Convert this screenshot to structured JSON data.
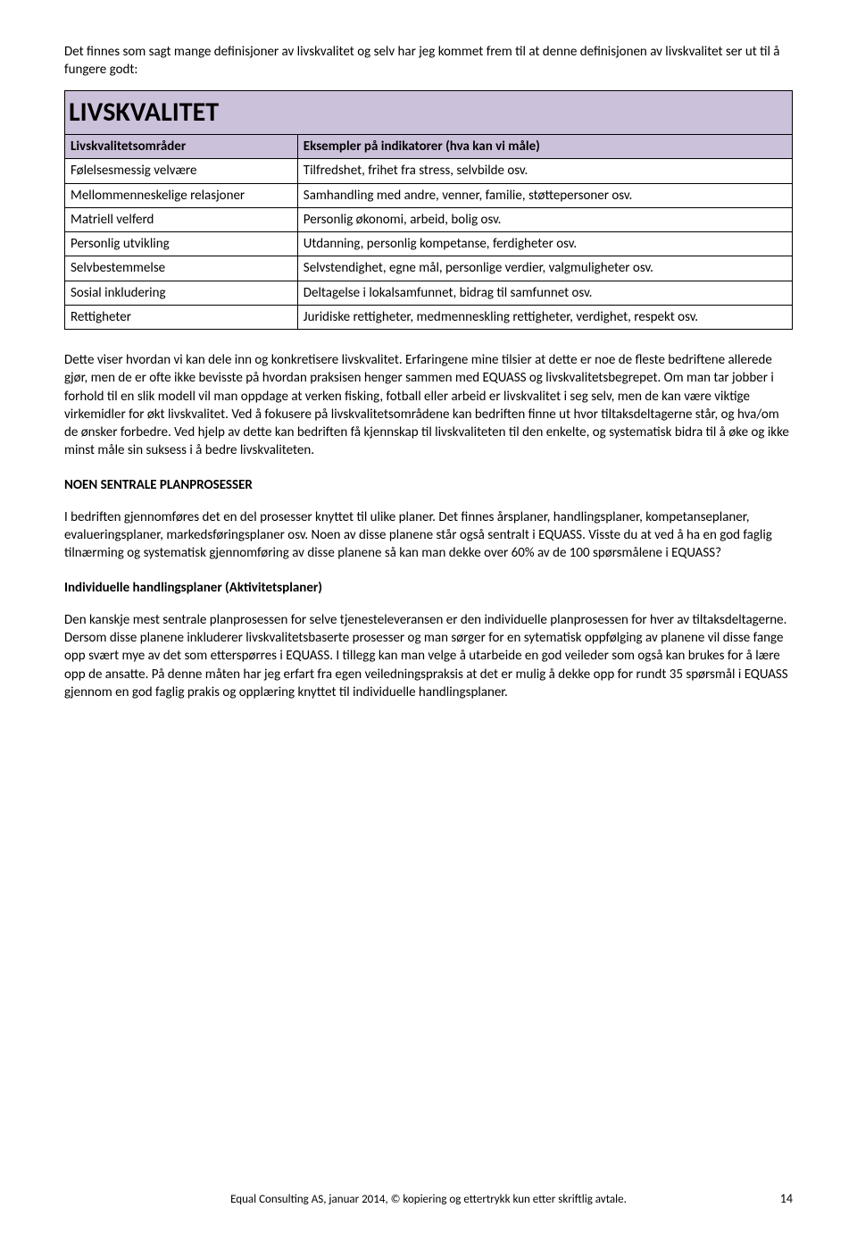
{
  "intro": "Det finnes som sagt mange definisjoner av livskvalitet og selv har jeg kommet frem til at denne definisjonen av livskvalitet ser ut til å fungere godt:",
  "table": {
    "title": "LIVSKVALITET",
    "header_bg": "#ccc1da",
    "col1_header": "Livskvalitetsområder",
    "col2_header": "Eksempler på indikatorer (hva kan vi måle)",
    "rows": [
      {
        "c1": "Følelsesmessig velvære",
        "c2": "Tilfredshet, frihet fra stress, selvbilde osv."
      },
      {
        "c1": "Mellommenneskelige relasjoner",
        "c2": "Samhandling med andre, venner, familie, støttepersoner osv."
      },
      {
        "c1": "Matriell velferd",
        "c2": "Personlig økonomi, arbeid, bolig osv."
      },
      {
        "c1": "Personlig utvikling",
        "c2": "Utdanning, personlig kompetanse, ferdigheter osv."
      },
      {
        "c1": "Selvbestemmelse",
        "c2": "Selvstendighet, egne mål, personlige verdier, valgmuligheter osv."
      },
      {
        "c1": "Sosial inkludering",
        "c2": "Deltagelse i lokalsamfunnet, bidrag til samfunnet osv."
      },
      {
        "c1": "Rettigheter",
        "c2": "Juridiske rettigheter, medmenneskling rettigheter, verdighet, respekt osv."
      }
    ]
  },
  "para1": "Dette viser hvordan vi kan dele inn og konkretisere livskvalitet. Erfaringene mine tilsier at dette er noe de fleste bedriftene allerede gjør, men de er ofte ikke bevisste på hvordan praksisen henger sammen med EQUASS og livskvalitetsbegrepet. Om man tar jobber i forhold til en slik modell vil man oppdage at verken fisking, fotball eller arbeid er livskvalitet i seg selv, men de kan være viktige virkemidler for økt livskvalitet. Ved å fokusere på livskvalitetsområdene kan bedriften finne ut hvor tiltaksdeltagerne står, og hva/om de ønsker forbedre. Ved hjelp av dette kan bedriften få kjennskap til livskvaliteten til den enkelte, og  systematisk bidra til å øke og ikke minst måle sin suksess i å bedre livskvaliteten.",
  "head1": "NOEN SENTRALE PLANPROSESSER",
  "para2": "I bedriften gjennomføres det en del prosesser knyttet til ulike planer. Det finnes årsplaner, handlingsplaner, kompetanseplaner, evalueringsplaner, markedsføringsplaner osv. Noen av disse planene står også sentralt i EQUASS. Visste du at ved å ha en god faglig tilnærming og systematisk gjennomføring av disse planene så kan man dekke over 60% av de 100 spørsmålene i EQUASS?",
  "head2": "Individuelle handlingsplaner (Aktivitetsplaner)",
  "para3": "Den kanskje mest sentrale planprosessen for selve tjenesteleveransen er den individuelle planprosessen for hver av tiltaksdeltagerne. Dersom disse planene inkluderer livskvalitetsbaserte prosesser og man sørger for en sytematisk oppfølging av planene vil disse fange opp svært mye av det som etterspørres i EQUASS. I tillegg kan man velge å utarbeide en god veileder som også kan brukes for å lære opp de ansatte. På denne måten har jeg erfart fra egen veiledningspraksis at det er mulig å dekke opp for rundt 35 spørsmål i EQUASS gjennom en god faglig prakis og opplæring knyttet til individuelle handlingsplaner.",
  "footer": "Equal Consulting AS, januar 2014, © kopiering og ettertrykk kun etter skriftlig avtale.",
  "pagenum": "14"
}
